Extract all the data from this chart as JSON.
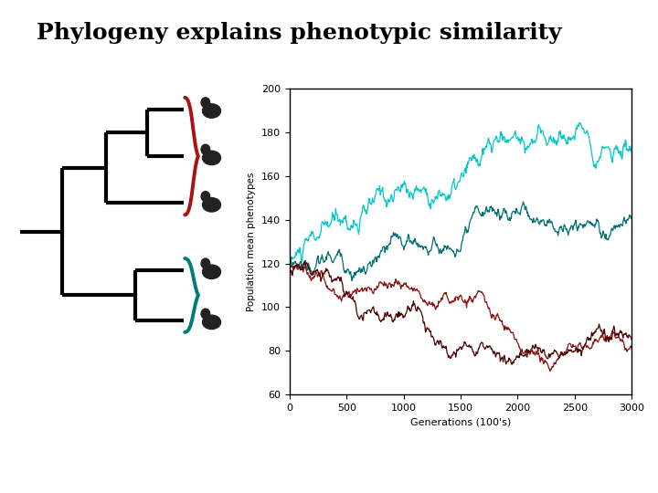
{
  "title": "Phylogeny explains phenotypic similarity",
  "title_fontsize": 18,
  "title_fontweight": "bold",
  "ylabel": "Population mean phenotypes",
  "xlabel": "Generations (100's)",
  "xlim": [
    0,
    3000
  ],
  "ylim": [
    60,
    200
  ],
  "yticks": [
    60,
    80,
    100,
    120,
    140,
    160,
    180,
    200
  ],
  "xticks": [
    0,
    500,
    1000,
    1500,
    2000,
    2500,
    3000
  ],
  "cyan_color": "#00C8C8",
  "dark_cyan_color": "#007070",
  "red_color": "#8B1010",
  "dark_red_color": "#4A0000",
  "line_alpha": 1.0,
  "seed_cyan1": 10,
  "seed_cyan2": 20,
  "seed_red1": 30,
  "seed_red2": 40,
  "n_points": 600,
  "background_color": "#ffffff",
  "plot_bg": "#ffffff",
  "brace_red": "#AA1111",
  "brace_teal": "#007B7B"
}
